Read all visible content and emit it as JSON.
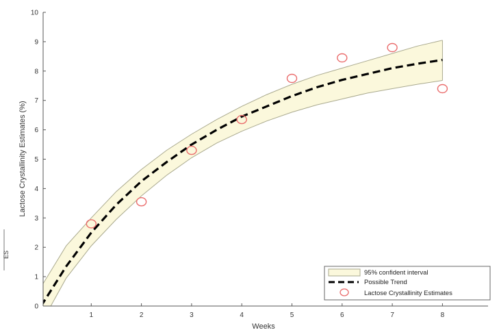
{
  "chart_data": {
    "type": "line",
    "xlabel": "Weeks",
    "ylabel": "Lactose Crystallinity Estimates (%)",
    "xlim": [
      0,
      8.8
    ],
    "ylim": [
      0,
      10
    ],
    "xticks": [
      1,
      2,
      3,
      4,
      5,
      6,
      7,
      8
    ],
    "yticks": [
      0,
      1,
      2,
      3,
      4,
      5,
      6,
      7,
      8,
      9,
      10
    ],
    "grid": false,
    "legend_position": "bottom-right",
    "series": [
      {
        "name": "95% confident interval",
        "kind": "band",
        "x": [
          0,
          0.5,
          1,
          1.5,
          2,
          2.5,
          3,
          3.5,
          4,
          4.5,
          5,
          5.5,
          6,
          6.5,
          7,
          7.5,
          8
        ],
        "lower": [
          -0.6,
          0.95,
          2.05,
          2.95,
          3.75,
          4.45,
          5.05,
          5.55,
          5.95,
          6.3,
          6.6,
          6.85,
          7.05,
          7.25,
          7.4,
          7.55,
          7.68
        ],
        "upper": [
          0.65,
          2.05,
          3.0,
          3.9,
          4.65,
          5.3,
          5.85,
          6.35,
          6.8,
          7.2,
          7.55,
          7.85,
          8.1,
          8.35,
          8.6,
          8.85,
          9.05
        ]
      },
      {
        "name": "Possible Trend",
        "kind": "line",
        "x": [
          0,
          0.5,
          1,
          1.5,
          2,
          2.5,
          3,
          3.5,
          4,
          4.5,
          5,
          5.5,
          6,
          6.5,
          7,
          7.5,
          8
        ],
        "y": [
          0,
          1.35,
          2.5,
          3.45,
          4.25,
          4.9,
          5.5,
          6.0,
          6.45,
          6.8,
          7.15,
          7.45,
          7.7,
          7.9,
          8.1,
          8.25,
          8.38
        ]
      },
      {
        "name": "Lactose Crystallinity Estimates",
        "kind": "scatter",
        "x": [
          1,
          2,
          3,
          4,
          5,
          6,
          7,
          8
        ],
        "y": [
          2.8,
          3.55,
          5.3,
          6.35,
          7.75,
          8.45,
          8.8,
          7.4
        ]
      }
    ]
  },
  "colors": {
    "band_fill": "#fbf8dc",
    "band_edge": "#a9a98e",
    "trend": "#000000",
    "marker": "#ea6b6b",
    "axis": "#555555"
  },
  "edge_fragment": "ES"
}
